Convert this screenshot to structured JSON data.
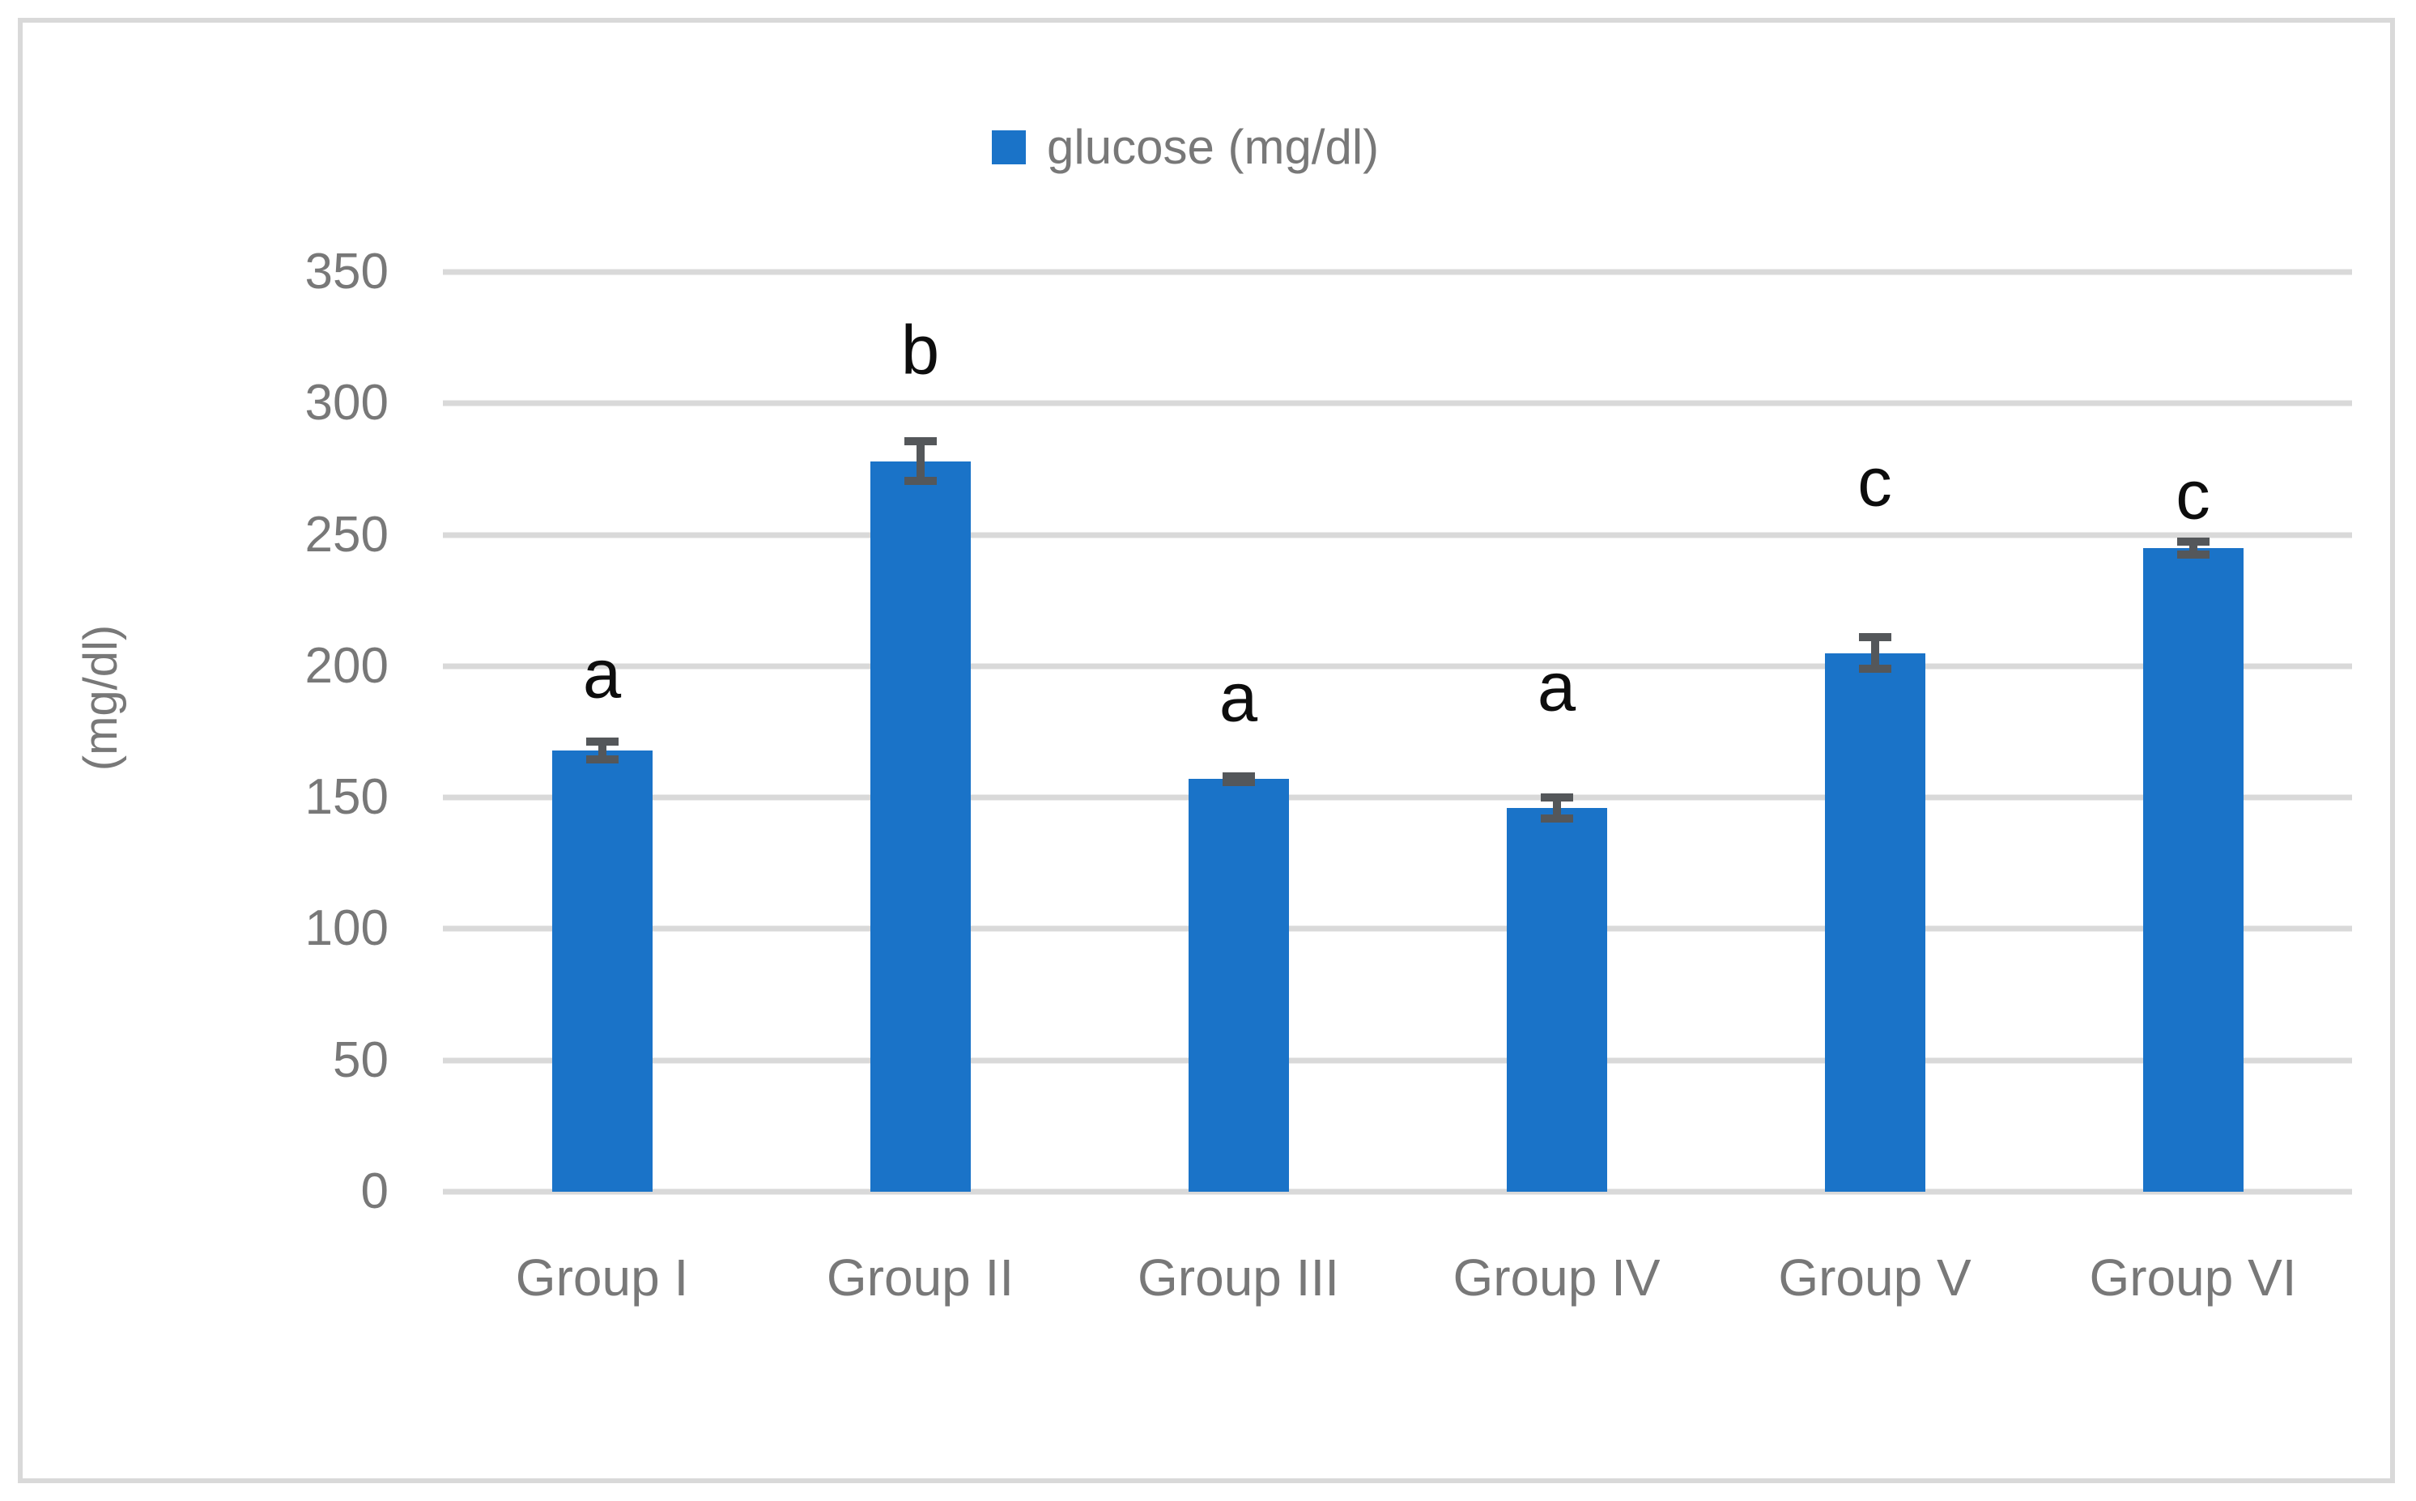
{
  "figure": {
    "background_color": "#ffffff",
    "border_color": "#d9d9d9"
  },
  "legend": {
    "label": "glucose (mg/dl)",
    "swatch_color": "#1a73c8"
  },
  "y_axis": {
    "title": "(mg/dl)",
    "ticks": [
      "350",
      "300",
      "250",
      "200",
      "150",
      "100",
      "50",
      "0"
    ]
  },
  "chart_data": {
    "type": "bar",
    "title": "",
    "legend_entries": [
      "glucose (mg/dl)"
    ],
    "legend_position": "top-center",
    "categories": [
      "Group I",
      "Group II",
      "Group III",
      "Group IV",
      "Group V",
      "Group VI"
    ],
    "series": [
      {
        "name": "glucose (mg/dl)",
        "values": [
          168,
          278,
          157,
          146,
          205,
          245
        ],
        "error_bars": [
          5,
          9,
          2.5,
          5.5,
          7.5,
          4
        ]
      }
    ],
    "annotations": [
      {
        "category": "Group I",
        "label": "a",
        "y": 197
      },
      {
        "category": "Group II",
        "label": "b",
        "y": 320
      },
      {
        "category": "Group III",
        "label": "a",
        "y": 188
      },
      {
        "category": "Group IV",
        "label": "a",
        "y": 192
      },
      {
        "category": "Group V",
        "label": "c",
        "y": 270
      },
      {
        "category": "Group VI",
        "label": "c",
        "y": 265
      }
    ],
    "xlabel": "",
    "ylabel": "(mg/dl)",
    "ylim": [
      0,
      350
    ],
    "ytick_step": 50,
    "grid": true,
    "bar_color": "#1a73c8",
    "error_bar_color": "#54575a",
    "gridline_color": "#d9d9d9",
    "axis_text_color": "#787878",
    "annotation_color": "#0d0d0d"
  }
}
